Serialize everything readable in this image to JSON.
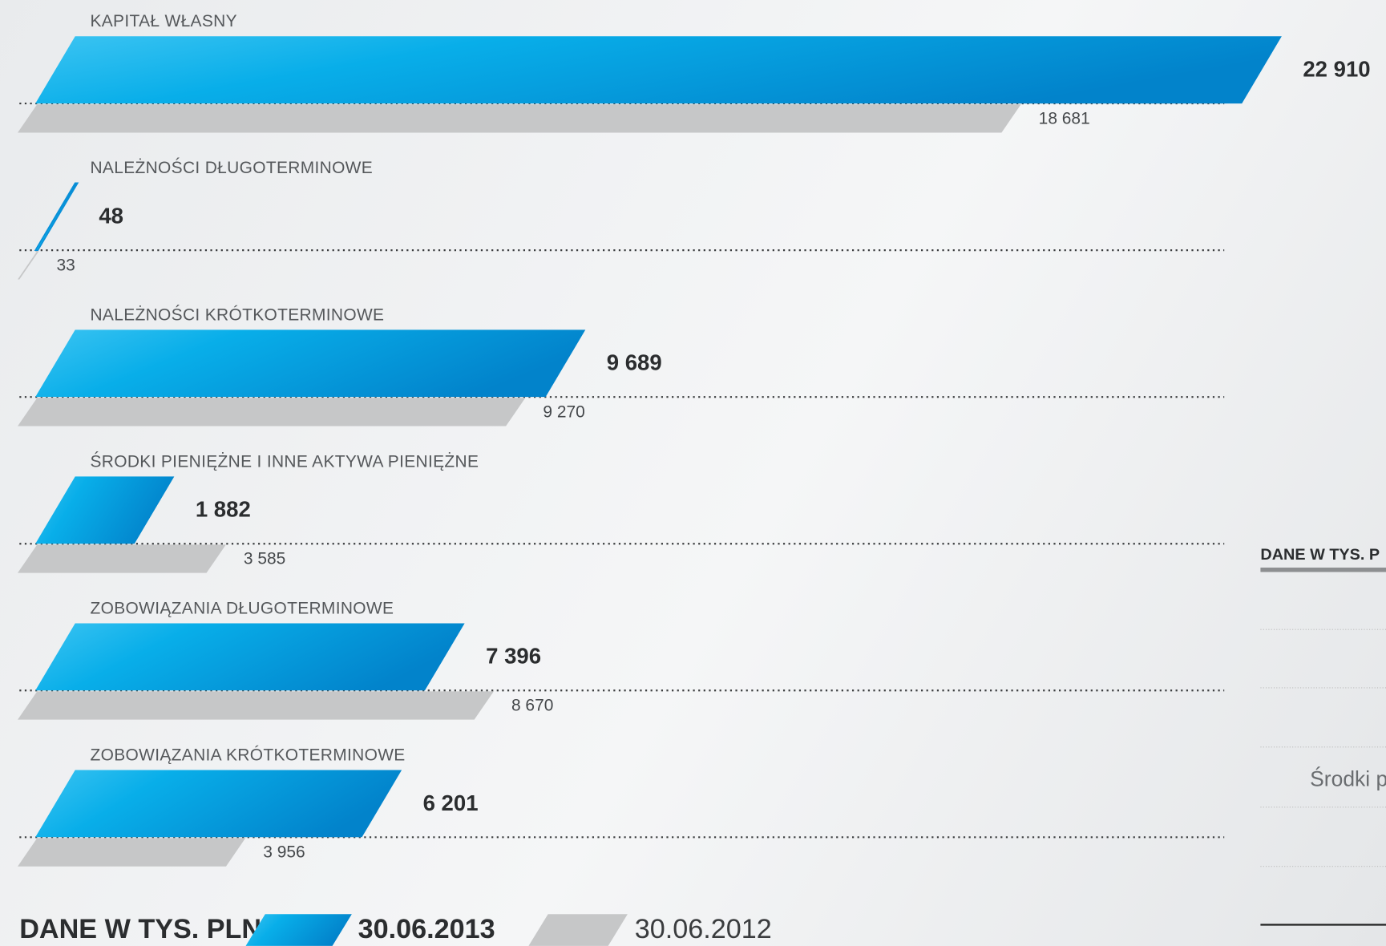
{
  "chart_data": {
    "type": "bar",
    "categories": [
      "KAPITAŁ WŁASNY",
      "NALEŻNOŚCI DŁUGOTERMINOWE",
      "NALEŻNOŚCI KRÓTKOTERMINOWE",
      "ŚRODKI PIENIĘŻNE I INNE AKTYWA PIENIĘŻNE",
      "ZOBOWIĄZANIA DŁUGOTERMINOWE",
      "ZOBOWIĄZANIA KRÓTKOTERMINOWE"
    ],
    "series": [
      {
        "name": "30.06.2013",
        "color": "#0a8fd8",
        "values": [
          22910,
          48,
          9689,
          1882,
          7396,
          6201
        ],
        "value_labels": [
          "22 910",
          "48",
          "9 689",
          "1 882",
          "7 396",
          "6 201"
        ]
      },
      {
        "name": "30.06.2012",
        "color": "#c6c7c8",
        "values": [
          18681,
          33,
          9270,
          3585,
          8670,
          3956
        ],
        "value_labels": [
          "18 681",
          "33",
          "9 270",
          "3 585",
          "8 670",
          "3 956"
        ]
      }
    ],
    "legend_title": "DANE W TYS. PLN"
  },
  "side_panel": {
    "title": "DANE W TYS. P",
    "row": "Środki p"
  }
}
